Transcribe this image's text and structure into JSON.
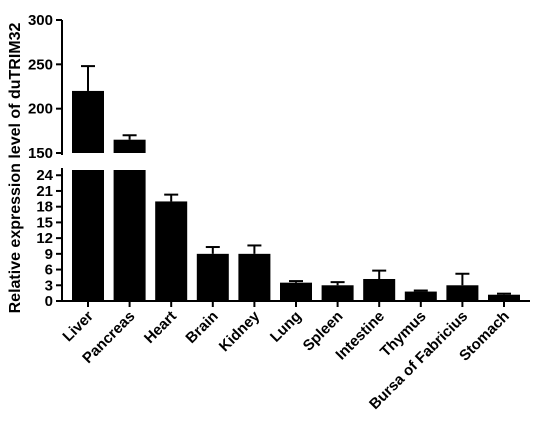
{
  "chart_data": {
    "type": "bar",
    "title": "",
    "xlabel": "",
    "ylabel": "Relative expression level of duTRIM32",
    "categories": [
      "Liver",
      "Pancreas",
      "Heart",
      "Brain",
      "Kidney",
      "Lung",
      "Spleen",
      "Intestine",
      "Thymus",
      "Bursa of Fabricius",
      "Stomach"
    ],
    "values": [
      220,
      165,
      19,
      9,
      9,
      3.5,
      3,
      4.2,
      1.8,
      3,
      1.2
    ],
    "error_plus": [
      28,
      5,
      1.3,
      1.3,
      1.6,
      0.3,
      0.6,
      1.6,
      0.2,
      2.2,
      0.2
    ],
    "y_axis_broken": true,
    "segments": [
      {
        "ylim": [
          0,
          25
        ],
        "ticks": [
          "0",
          "3",
          "6",
          "9",
          "12",
          "15",
          "18",
          "21",
          "24"
        ]
      },
      {
        "ylim": [
          150,
          300
        ],
        "ticks": [
          "150",
          "200",
          "250",
          "300"
        ]
      }
    ],
    "bar_color": "#000000",
    "grid": false
  }
}
